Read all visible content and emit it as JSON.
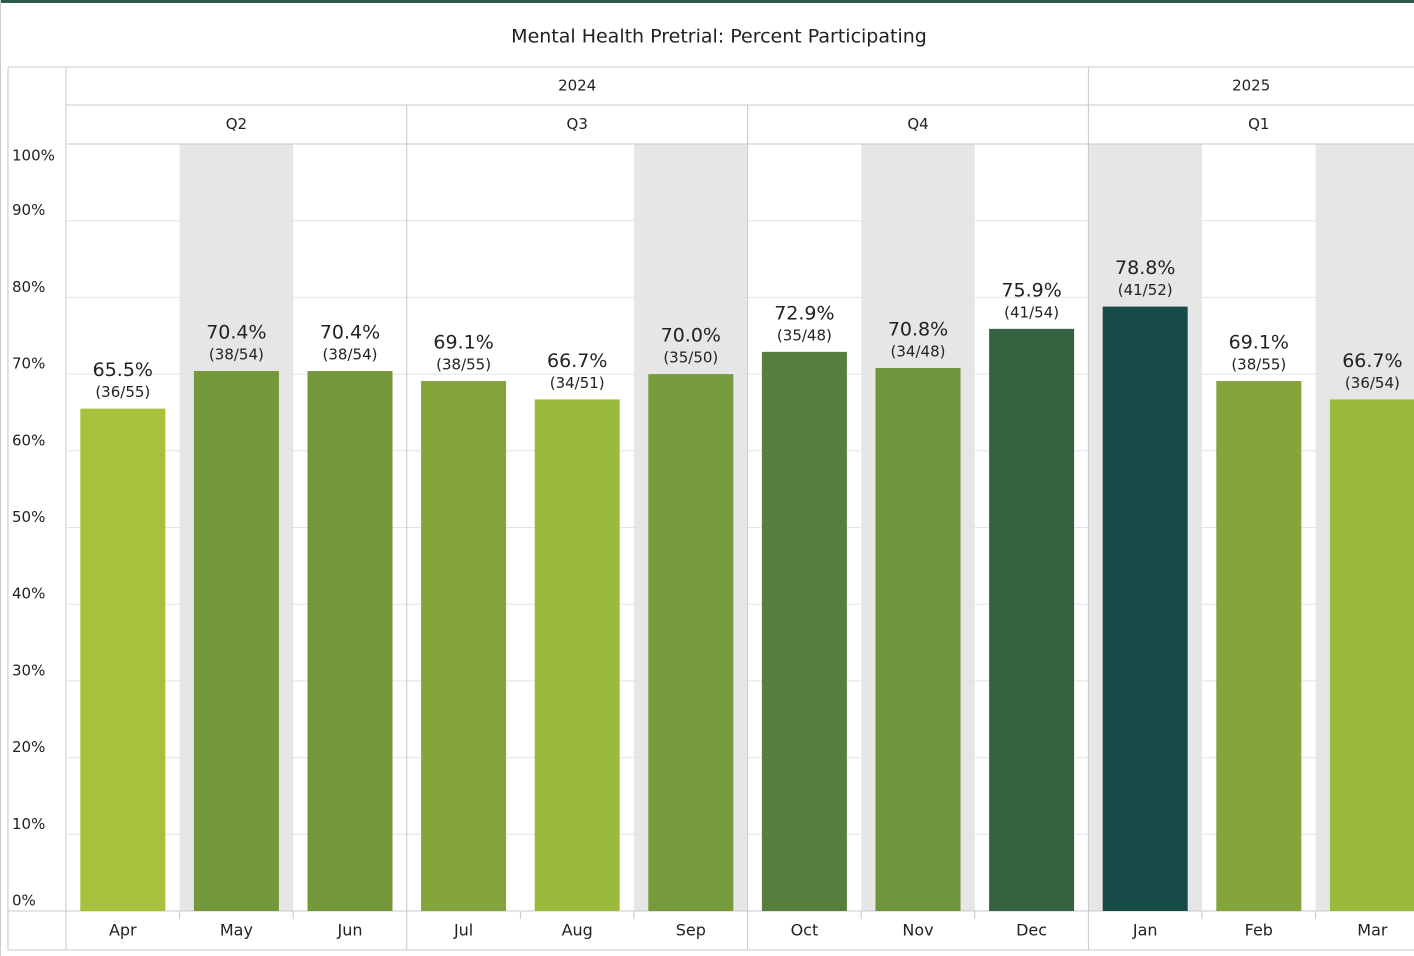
{
  "chart_data": {
    "type": "bar",
    "title": "Mental Health Pretrial: Percent Participating",
    "years": [
      {
        "label": "2024",
        "quarters": [
          "Q2",
          "Q3",
          "Q4"
        ]
      },
      {
        "label": "2025",
        "quarters": [
          "Q1"
        ]
      }
    ],
    "categories": [
      "Apr",
      "May",
      "Jun",
      "Jul",
      "Aug",
      "Sep",
      "Oct",
      "Nov",
      "Dec",
      "Jan",
      "Feb",
      "Mar"
    ],
    "values": [
      65.5,
      70.4,
      70.4,
      69.1,
      66.7,
      70.0,
      72.9,
      70.8,
      75.9,
      78.8,
      69.1,
      66.7
    ],
    "value_labels": [
      "65.5%",
      "70.4%",
      "70.4%",
      "69.1%",
      "66.7%",
      "70.0%",
      "72.9%",
      "70.8%",
      "75.9%",
      "78.8%",
      "69.1%",
      "66.7%"
    ],
    "fraction_labels": [
      "(36/55)",
      "(38/54)",
      "(38/54)",
      "(38/55)",
      "(34/51)",
      "(35/50)",
      "(35/48)",
      "(34/48)",
      "(41/54)",
      "(41/52)",
      "(38/55)",
      "(36/54)"
    ],
    "colors": [
      "#a7c23a",
      "#74973c",
      "#74973c",
      "#84a43c",
      "#9bb93a",
      "#779b3c",
      "#567f3e",
      "#6e943d",
      "#356140",
      "#184a48",
      "#84a43c",
      "#9bb93a"
    ],
    "ylim": [
      0,
      100
    ],
    "yticks": [
      {
        "value": 0,
        "label": "0%"
      },
      {
        "value": 10,
        "label": "10%"
      },
      {
        "value": 20,
        "label": "20%"
      },
      {
        "value": 30,
        "label": "30%"
      },
      {
        "value": 40,
        "label": "40%"
      },
      {
        "value": 50,
        "label": "50%"
      },
      {
        "value": 60,
        "label": "60%"
      },
      {
        "value": 70,
        "label": "70%"
      },
      {
        "value": 80,
        "label": "80%"
      },
      {
        "value": 90,
        "label": "90%"
      },
      {
        "value": 100,
        "label": "100%"
      }
    ],
    "grid": true
  }
}
